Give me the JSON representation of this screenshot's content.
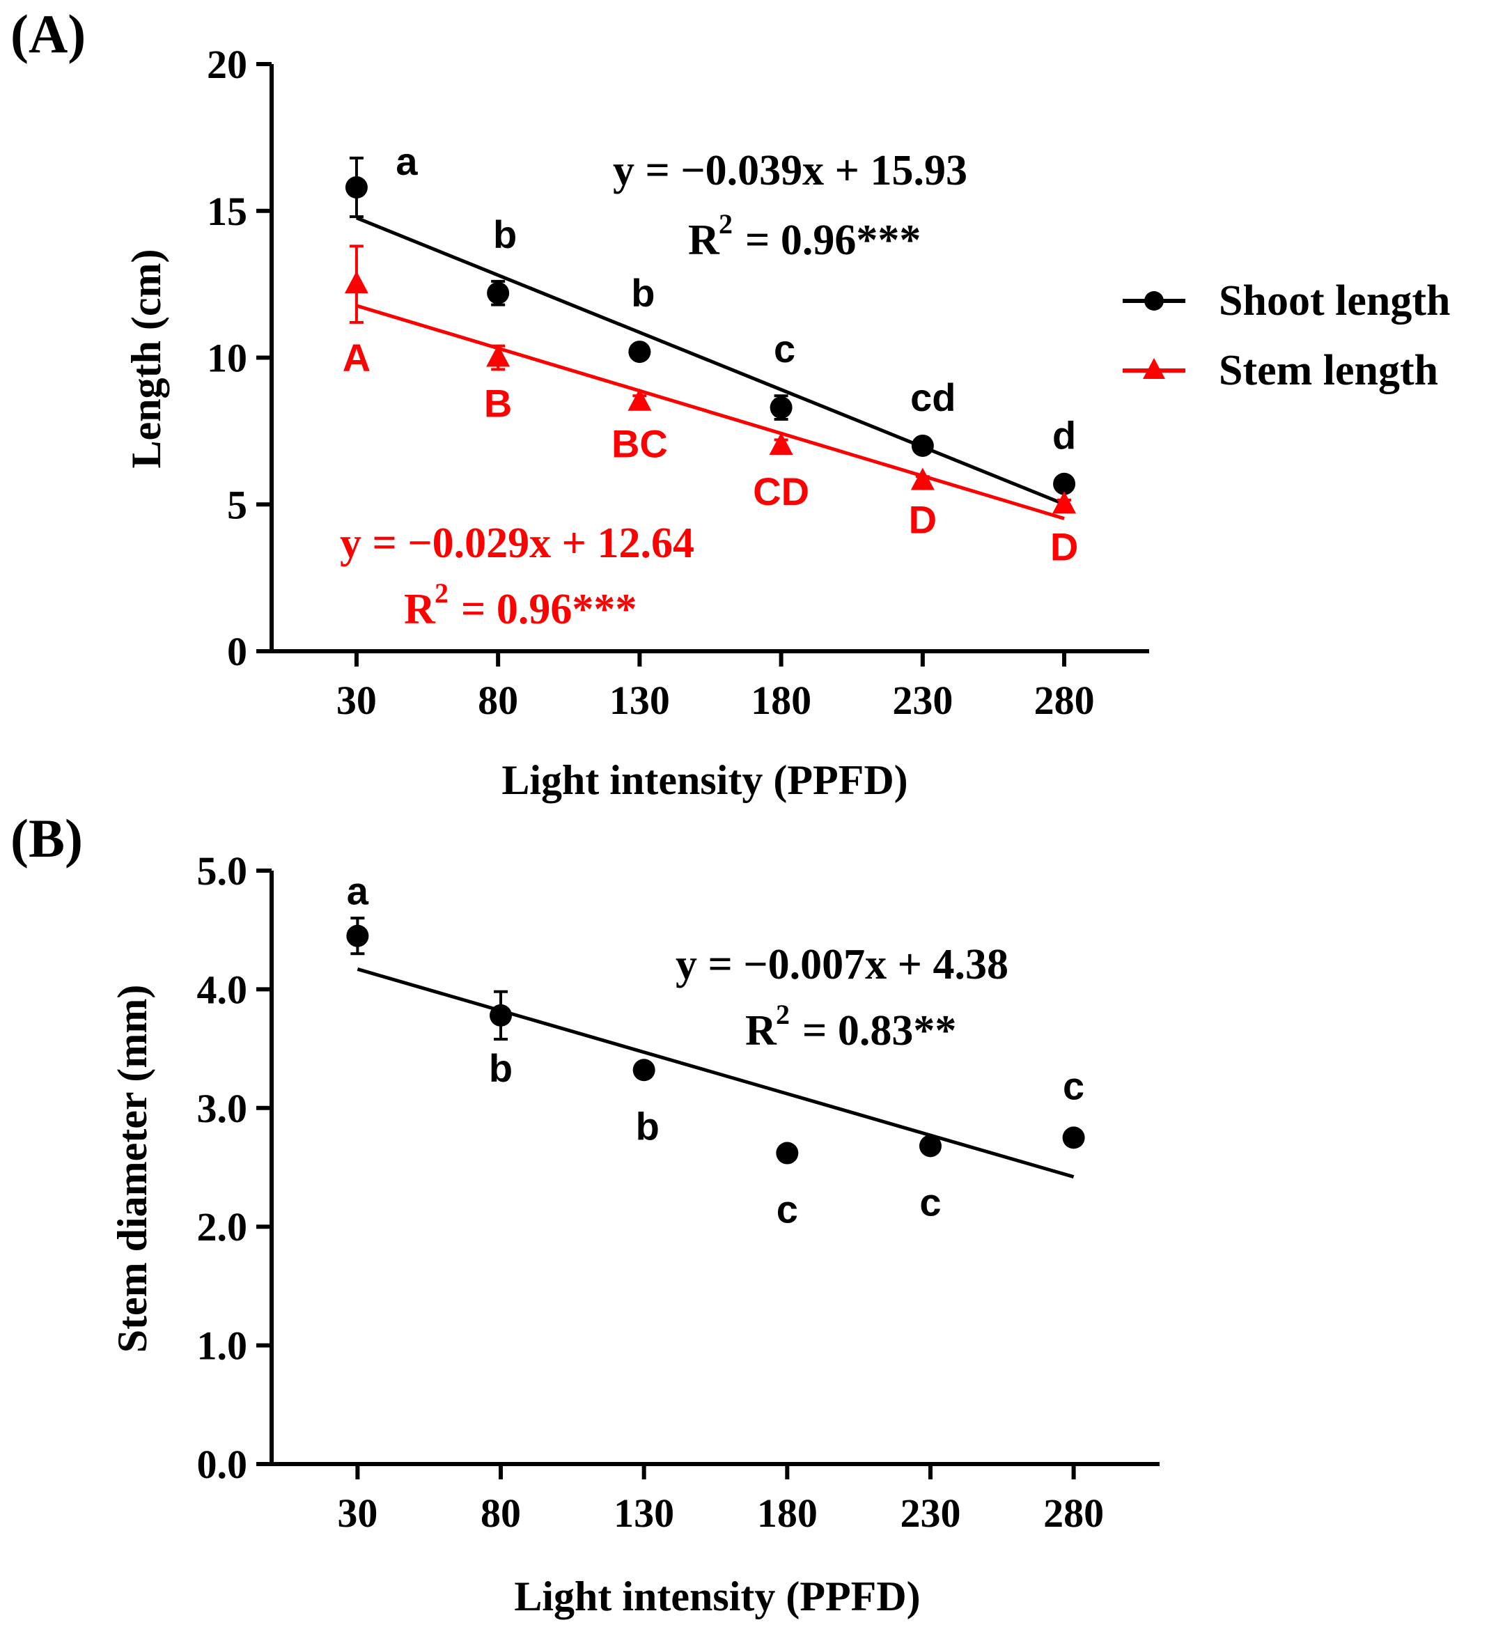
{
  "chart_data": [
    {
      "panel": "(A)",
      "type": "scatter",
      "xlabel": "Light intensity (PPFD)",
      "ylabel": "Length (cm)",
      "x": [
        30,
        80,
        130,
        180,
        230,
        280
      ],
      "xlim": [
        0,
        310
      ],
      "ylim": [
        0,
        20
      ],
      "yticks": [
        0,
        5,
        10,
        15,
        20
      ],
      "ytick_labels": [
        "0",
        "5",
        "10",
        "15",
        "20"
      ],
      "xtick_labels": [
        "30",
        "80",
        "130",
        "180",
        "230",
        "280"
      ],
      "legend": [
        "Shoot length",
        "Stem length"
      ],
      "legend_position": "right",
      "series": [
        {
          "name": "Shoot length",
          "color": "#000000",
          "marker": "circle",
          "values": [
            15.8,
            12.2,
            10.2,
            8.3,
            7.0,
            5.7
          ],
          "errors": [
            1.0,
            0.4,
            0.2,
            0.4,
            0.15,
            0.15
          ],
          "letters": [
            "a",
            "b",
            "b",
            "c",
            "cd",
            "d"
          ],
          "fit": {
            "slope": -0.039,
            "intercept": 15.93,
            "x_range": [
              30,
              280
            ]
          },
          "equation": "y = −0.039x + 15.93",
          "r2_value": "= 0.96***"
        },
        {
          "name": "Stem length",
          "color": "#ff0000",
          "marker": "triangle",
          "values": [
            12.5,
            10.0,
            8.5,
            7.0,
            5.8,
            5.0
          ],
          "errors": [
            1.3,
            0.4,
            0.2,
            0.2,
            0.15,
            0.15
          ],
          "letters": [
            "A",
            "B",
            "BC",
            "CD",
            "D",
            "D"
          ],
          "fit": {
            "slope": -0.029,
            "intercept": 12.64,
            "x_range": [
              30,
              280
            ]
          },
          "equation": "y = −0.029x + 12.64",
          "r2_value": "= 0.96***"
        }
      ]
    },
    {
      "panel": "(B)",
      "type": "scatter",
      "xlabel": "Light intensity (PPFD)",
      "ylabel": "Stem diameter (mm)",
      "x": [
        30,
        80,
        130,
        180,
        230,
        280
      ],
      "xlim": [
        0,
        310
      ],
      "ylim": [
        0,
        5
      ],
      "yticks": [
        0,
        1,
        2,
        3,
        4,
        5
      ],
      "ytick_labels": [
        "0.0",
        "1.0",
        "2.0",
        "3.0",
        "4.0",
        "5.0"
      ],
      "xtick_labels": [
        "30",
        "80",
        "130",
        "180",
        "230",
        "280"
      ],
      "series": [
        {
          "name": "Stem diameter",
          "color": "#000000",
          "marker": "circle",
          "values": [
            4.45,
            3.78,
            3.32,
            2.62,
            2.68,
            2.75
          ],
          "errors": [
            0.15,
            0.2,
            0.05,
            0.03,
            0.03,
            0.03
          ],
          "letters": [
            "a",
            "b",
            "b",
            "c",
            "c",
            "c"
          ],
          "fit": {
            "slope": -0.007,
            "intercept": 4.38,
            "x_range": [
              30,
              280
            ]
          },
          "equation": "y = −0.007x + 4.38",
          "r2_value": "= 0.83**"
        }
      ]
    }
  ]
}
